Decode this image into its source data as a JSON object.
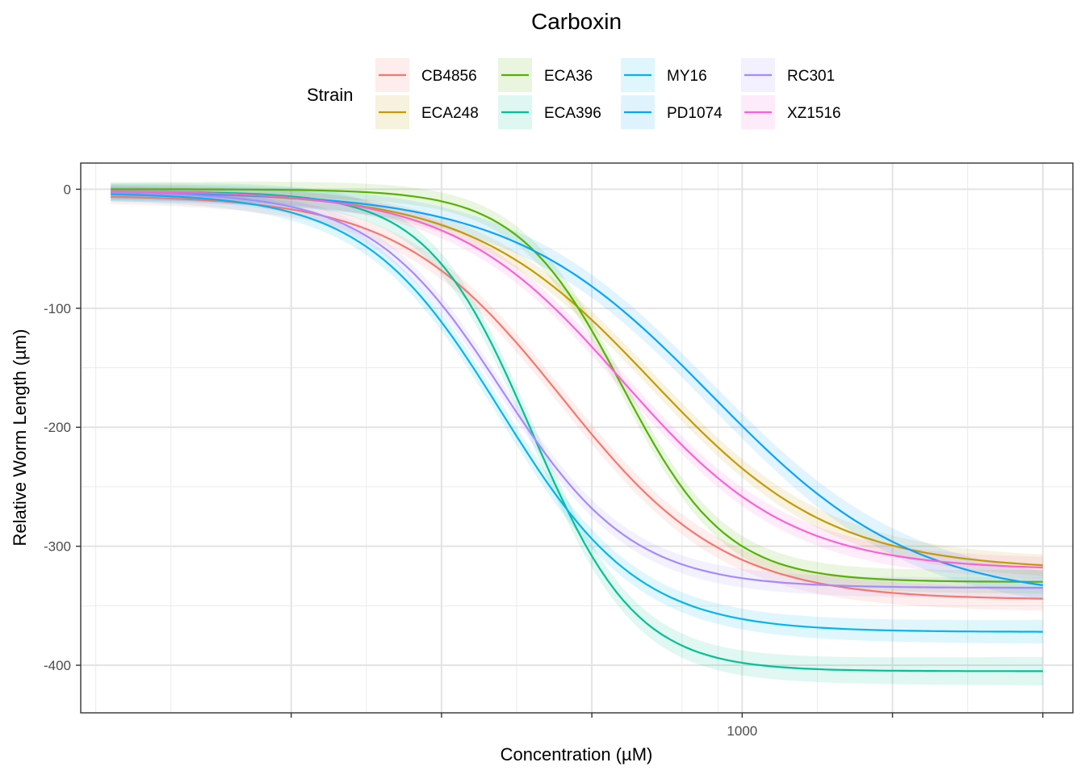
{
  "chart_data": {
    "type": "line",
    "title": "Carboxin",
    "xlabel": "Concentration (µM)",
    "ylabel": "Relative Worm Length (µm)",
    "x_scale": "log10",
    "xlim_log10": [
      1.9,
      3.55
    ],
    "ylim": [
      -440,
      22
    ],
    "y_ticks": [
      0,
      -100,
      -200,
      -300,
      -400
    ],
    "y_tick_labels": [
      "0",
      "-100",
      "-200",
      "-300",
      "-400"
    ],
    "x_ticks": [
      1000
    ],
    "x_tick_labels": [
      "1000"
    ],
    "x_major_grid_log10": [
      2.25,
      2.5,
      2.75,
      3.0,
      3.25,
      3.5
    ],
    "x_minor_grid_log10": [
      1.925,
      2.05,
      2.375,
      2.625,
      2.9,
      2.96,
      3.125,
      3.375
    ],
    "legend_title": "Strain",
    "legend_position": "top",
    "x_range_log10": [
      1.95,
      3.5
    ],
    "series": [
      {
        "name": "CB4856",
        "color": "#F8766D",
        "top": -5,
        "bottom": -345,
        "logEC50": 2.7,
        "hill": 3.2,
        "band": 10
      },
      {
        "name": "ECA248",
        "color": "#C49A00",
        "top": -2,
        "bottom": -320,
        "logEC50": 2.85,
        "hill": 2.9,
        "band": 9
      },
      {
        "name": "ECA36",
        "color": "#53B400",
        "top": 0,
        "bottom": -330,
        "logEC50": 2.8,
        "hill": 5.0,
        "band": 10
      },
      {
        "name": "ECA396",
        "color": "#00C094",
        "top": -2,
        "bottom": -405,
        "logEC50": 2.65,
        "hill": 5.0,
        "band": 12
      },
      {
        "name": "MY16",
        "color": "#00B6EB",
        "top": -3,
        "bottom": -372,
        "logEC50": 2.6,
        "hill": 3.8,
        "band": 10
      },
      {
        "name": "PD1074",
        "color": "#06A4FF",
        "top": -2,
        "bottom": -345,
        "logEC50": 2.95,
        "hill": 2.6,
        "band": 12
      },
      {
        "name": "RC301",
        "color": "#A58AFF",
        "top": -2,
        "bottom": -335,
        "logEC50": 2.6,
        "hill": 4.0,
        "band": 9
      },
      {
        "name": "XZ1516",
        "color": "#FB61D7",
        "top": -1,
        "bottom": -320,
        "logEC50": 2.8,
        "hill": 3.1,
        "band": 9
      }
    ]
  }
}
